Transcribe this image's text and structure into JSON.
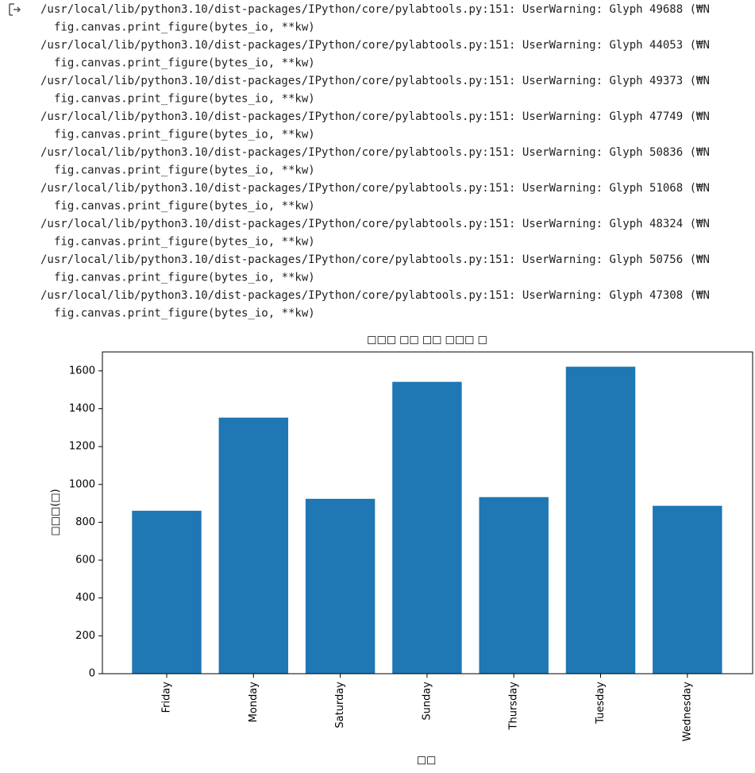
{
  "warnings": [
    {
      "message": "/usr/local/lib/python3.10/dist-packages/IPython/core/pylabtools.py:151: UserWarning: Glyph 49688 (₩N",
      "code": "fig.canvas.print_figure(bytes_io, **kw)"
    },
    {
      "message": "/usr/local/lib/python3.10/dist-packages/IPython/core/pylabtools.py:151: UserWarning: Glyph 44053 (₩N",
      "code": "fig.canvas.print_figure(bytes_io, **kw)"
    },
    {
      "message": "/usr/local/lib/python3.10/dist-packages/IPython/core/pylabtools.py:151: UserWarning: Glyph 49373 (₩N",
      "code": "fig.canvas.print_figure(bytes_io, **kw)"
    },
    {
      "message": "/usr/local/lib/python3.10/dist-packages/IPython/core/pylabtools.py:151: UserWarning: Glyph 47749 (₩N",
      "code": "fig.canvas.print_figure(bytes_io, **kw)"
    },
    {
      "message": "/usr/local/lib/python3.10/dist-packages/IPython/core/pylabtools.py:151: UserWarning: Glyph 50836 (₩N",
      "code": "fig.canvas.print_figure(bytes_io, **kw)"
    },
    {
      "message": "/usr/local/lib/python3.10/dist-packages/IPython/core/pylabtools.py:151: UserWarning: Glyph 51068 (₩N",
      "code": "fig.canvas.print_figure(bytes_io, **kw)"
    },
    {
      "message": "/usr/local/lib/python3.10/dist-packages/IPython/core/pylabtools.py:151: UserWarning: Glyph 48324 (₩N",
      "code": "fig.canvas.print_figure(bytes_io, **kw)"
    },
    {
      "message": "/usr/local/lib/python3.10/dist-packages/IPython/core/pylabtools.py:151: UserWarning: Glyph 50756 (₩N",
      "code": "fig.canvas.print_figure(bytes_io, **kw)"
    },
    {
      "message": "/usr/local/lib/python3.10/dist-packages/IPython/core/pylabtools.py:151: UserWarning: Glyph 47308 (₩N",
      "code": "fig.canvas.print_figure(bytes_io, **kw)"
    }
  ],
  "chart_data": {
    "type": "bar",
    "title": "□□□ □□ □□ □□□ □",
    "x_label": "□□",
    "y_label": "□□□(□)",
    "categories": [
      "Friday",
      "Monday",
      "Saturday",
      "Sunday",
      "Thursday",
      "Tuesday",
      "Wednesday"
    ],
    "values": [
      861,
      1353,
      924,
      1542,
      933,
      1622,
      887
    ],
    "color": "#1f77b4",
    "ylim": [
      0,
      1700
    ],
    "yticks": [
      0,
      200,
      400,
      600,
      800,
      1000,
      1200,
      1400,
      1600
    ]
  }
}
